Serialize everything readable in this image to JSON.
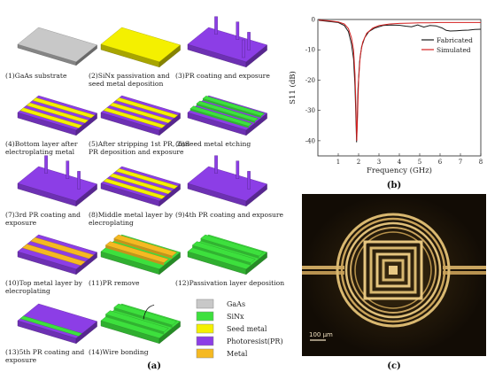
{
  "steps": [
    "(1)GaAs substrate",
    [
      "(2)SiNx passivation and",
      "seed metal deposition"
    ],
    "(3)PR coating and exposure",
    [
      "(4)Bottom layer after",
      "electroplating metal"
    ],
    [
      "(5)After stripping 1st PR, 2nd",
      "PR deposition and exposure"
    ],
    "(6)Seed metal etching",
    [
      "(7)3rd PR coating and",
      "exposure"
    ],
    [
      "(8)Middle metal layer by",
      "elecroplating"
    ],
    "(9)4th PR coating and exposure",
    [
      "(10)Top metal layer by",
      "elecroplating"
    ],
    "(11)PR remove",
    "(12)Passivation layer deposition",
    [
      "(13)5th PR coating and",
      "exposure"
    ],
    "(14)Wire bonding"
  ],
  "legend": [
    {
      "label": "GaAs",
      "color": "#c8c8c8"
    },
    {
      "label": "SiNx",
      "color": "#3de03d"
    },
    {
      "label": "Seed metal",
      "color": "#f4f000"
    },
    {
      "label": "Photoresist(PR)",
      "color": "#8c3ee6"
    },
    {
      "label": "Metal",
      "color": "#f5b922"
    }
  ],
  "panel_a": "(a)",
  "panel_b": "(b)",
  "panel_c": "(c)",
  "scale_bar": "100 μm",
  "chart_data": {
    "type": "line",
    "xlabel": "Frequency (GHz)",
    "ylabel": "S11 (dB)",
    "xlim": [
      0,
      8
    ],
    "ylim": [
      -45,
      0
    ],
    "xticks": [
      1,
      2,
      3,
      4,
      5,
      6,
      7,
      8
    ],
    "yticks": [
      0,
      -10,
      -20,
      -30,
      -40
    ],
    "legend_position": "top-right",
    "series": [
      {
        "name": "Fabricated",
        "color": "#1a1a1a",
        "x": [
          0.05,
          0.5,
          1.0,
          1.3,
          1.5,
          1.65,
          1.75,
          1.82,
          1.87,
          1.9,
          1.93,
          1.97,
          2.05,
          2.15,
          2.3,
          2.5,
          2.8,
          3.2,
          3.6,
          4.0,
          4.3,
          4.6,
          4.9,
          5.2,
          5.5,
          5.8,
          6.1,
          6.3,
          6.5,
          6.8,
          7.1,
          7.4,
          7.7,
          8.0
        ],
        "y": [
          -0.3,
          -0.6,
          -1.0,
          -2.0,
          -4.0,
          -8.0,
          -13.0,
          -22.0,
          -33.0,
          -40.5,
          -34.0,
          -23.0,
          -14.0,
          -9.0,
          -6.0,
          -4.0,
          -2.8,
          -2.0,
          -1.8,
          -1.9,
          -2.2,
          -2.4,
          -1.8,
          -2.5,
          -2.0,
          -2.1,
          -2.8,
          -3.6,
          -3.8,
          -3.7,
          -3.6,
          -3.5,
          -3.3,
          -3.2
        ]
      },
      {
        "name": "Simulated",
        "color": "#d42020",
        "x": [
          0.05,
          0.5,
          1.0,
          1.3,
          1.5,
          1.65,
          1.75,
          1.82,
          1.87,
          1.91,
          1.95,
          2.0,
          2.08,
          2.2,
          2.4,
          2.7,
          3.0,
          3.5,
          4.0,
          4.5,
          5.0,
          5.5,
          6.0,
          6.5,
          7.0,
          7.5,
          8.0
        ],
        "y": [
          -0.2,
          -0.4,
          -0.8,
          -1.5,
          -3.0,
          -6.0,
          -10.0,
          -18.0,
          -29.0,
          -40.0,
          -31.0,
          -20.0,
          -12.0,
          -7.5,
          -4.5,
          -2.8,
          -2.0,
          -1.5,
          -1.3,
          -1.2,
          -1.1,
          -1.1,
          -1.0,
          -1.0,
          -1.0,
          -1.0,
          -1.0
        ]
      }
    ]
  }
}
